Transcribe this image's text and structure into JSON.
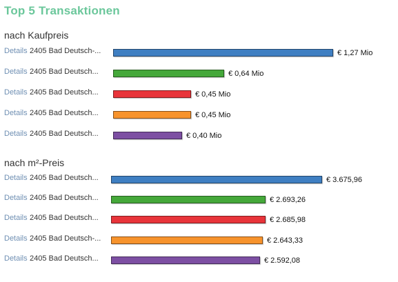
{
  "title": "Top 5 Transaktionen",
  "details_label": "Details",
  "colors": [
    "#3f7fc2",
    "#45a83a",
    "#e8343a",
    "#f7932c",
    "#7d4fa3"
  ],
  "chart_data": [
    {
      "type": "bar",
      "title": "nach Kaufpreis",
      "categories": [
        "2405 Bad Deutsch-...",
        "2405 Bad Deutsch...",
        "2405 Bad Deutsch...",
        "2405 Bad Deutsch...",
        "2405 Bad Deutsch..."
      ],
      "values": [
        1.27,
        0.64,
        0.45,
        0.45,
        0.4
      ],
      "value_labels": [
        "€ 1,27 Mio",
        "€ 0,64 Mio",
        "€ 0,45 Mio",
        "€ 0,45 Mio",
        "€ 0,40 Mio"
      ],
      "unit": "€ Mio",
      "xlim": [
        0,
        1.27
      ]
    },
    {
      "type": "bar",
      "title": "nach m²-Preis",
      "categories": [
        "2405 Bad Deutsch...",
        "2405 Bad Deutsch...",
        "2405 Bad Deutsch...",
        "2405 Bad Deutsch-...",
        "2405 Bad Deutsch..."
      ],
      "values": [
        3675.96,
        2693.26,
        2685.98,
        2643.33,
        2592.08
      ],
      "value_labels": [
        "€ 3.675,96",
        "€ 2.693,26",
        "€ 2.685,98",
        "€ 2.643,33",
        "€ 2.592,08"
      ],
      "unit": "€/m²",
      "xlim": [
        0,
        3675.96
      ]
    }
  ]
}
